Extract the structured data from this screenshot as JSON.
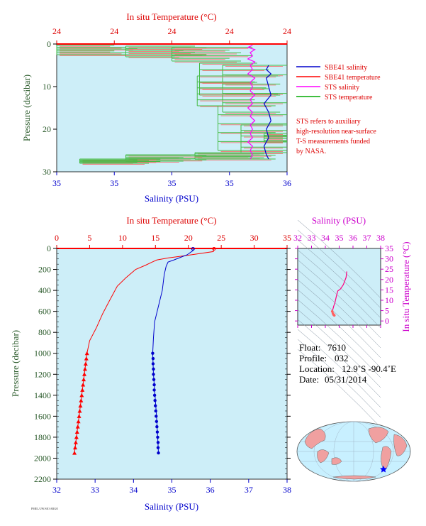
{
  "chart_data": [
    {
      "id": "top",
      "type": "line",
      "xlabel_bottom": "Salinity (PSU)",
      "xlabel_top": "In situ Temperature (°C)",
      "ylabel": "Pressure (decibar)",
      "top_ticks": [
        "24",
        "24",
        "24",
        "24",
        "24"
      ],
      "bottom_ticks": [
        "35",
        "35",
        "35",
        "35",
        "36"
      ],
      "yticks": [
        0,
        10,
        20,
        30
      ],
      "ylim": [
        30,
        0
      ],
      "xlim": [
        0,
        1
      ],
      "legend": [
        {
          "label": "SBE41 salinity",
          "color": "#0000cc"
        },
        {
          "label": "SBE41 temperature",
          "color": "#ff0000"
        },
        {
          "label": "STS salinity",
          "color": "#ff00ff"
        },
        {
          "label": "STS temperature",
          "color": "#00aa00"
        }
      ],
      "note": [
        "STS refers to auxiliary",
        "high-resolution near-surface",
        "T-S measurements funded",
        "by NASA."
      ],
      "series": [
        {
          "name": "SBE41 salinity",
          "color": "#0000cc",
          "points": [
            [
              0.92,
              5.0
            ],
            [
              0.91,
              6
            ],
            [
              0.93,
              7
            ],
            [
              0.91,
              8
            ],
            [
              0.92,
              10
            ],
            [
              0.93,
              12
            ],
            [
              0.9,
              14
            ],
            [
              0.92,
              16
            ],
            [
              0.93,
              18
            ],
            [
              0.91,
              20
            ],
            [
              0.92,
              22
            ],
            [
              0.9,
              24
            ],
            [
              0.91,
              26
            ],
            [
              0.92,
              27
            ]
          ]
        },
        {
          "name": "STS salinity",
          "color": "#ff00ff",
          "points": [
            [
              0.85,
              0.3
            ],
            [
              0.83,
              0.8
            ],
            [
              0.86,
              1.3
            ],
            [
              0.84,
              2
            ],
            [
              0.85,
              2.8
            ],
            [
              0.83,
              3.5
            ],
            [
              0.86,
              4.2
            ],
            [
              0.84,
              5
            ],
            [
              0.85,
              6
            ],
            [
              0.83,
              7
            ],
            [
              0.86,
              8
            ],
            [
              0.84,
              9
            ],
            [
              0.85,
              10
            ],
            [
              0.84,
              11
            ],
            [
              0.86,
              12
            ],
            [
              0.84,
              13
            ],
            [
              0.85,
              14
            ],
            [
              0.83,
              15
            ],
            [
              0.85,
              16
            ],
            [
              0.84,
              17
            ],
            [
              0.86,
              18
            ],
            [
              0.84,
              19
            ],
            [
              0.85,
              20
            ],
            [
              0.84,
              21
            ],
            [
              0.85,
              22
            ],
            [
              0.83,
              23
            ],
            [
              0.85,
              24
            ],
            [
              0.84,
              25
            ],
            [
              0.85,
              26
            ],
            [
              0.84,
              27
            ]
          ]
        }
      ],
      "temperature_steps": [
        {
          "x": 0.0,
          "y0": 0.3,
          "y1": 2.5
        },
        {
          "x": 0.3,
          "y0": 0.5,
          "y1": 3.0
        },
        {
          "x": 0.5,
          "y0": 0.8,
          "y1": 4.0
        },
        {
          "x": 0.62,
          "y0": 4.5,
          "y1": 12.0
        },
        {
          "x": 0.72,
          "y0": 5.0,
          "y1": 16.0
        },
        {
          "x": 0.61,
          "y0": 7.5,
          "y1": 14.5
        },
        {
          "x": 0.7,
          "y0": 14.5,
          "y1": 25.0
        },
        {
          "x": 0.8,
          "y0": 19.0,
          "y1": 25.5
        },
        {
          "x": 0.9,
          "y0": 21.0,
          "y1": 23.0
        },
        {
          "x": 0.6,
          "y0": 25.5,
          "y1": 27.0
        },
        {
          "x": 0.3,
          "y0": 26.0,
          "y1": 27.5
        },
        {
          "x": 0.1,
          "y0": 27.0,
          "y1": 28.0
        }
      ],
      "background": "#cdeef8"
    },
    {
      "id": "main",
      "type": "line",
      "xlabel_bottom": "Salinity (PSU)",
      "xlabel_top": "In situ Temperature (°C)",
      "ylabel": "Pressure (decibar)",
      "xlim_salinity": [
        32,
        38
      ],
      "xlim_temperature": [
        0,
        35
      ],
      "ylim": [
        2200,
        0
      ],
      "salinity_ticks": [
        32,
        33,
        34,
        35,
        36,
        37,
        38
      ],
      "temperature_ticks": [
        0,
        5,
        10,
        15,
        20,
        25,
        30,
        35
      ],
      "pressure_ticks": [
        0,
        200,
        400,
        600,
        800,
        1000,
        1200,
        1400,
        1600,
        1800,
        2000,
        2200
      ],
      "salinity_series": {
        "name": "Salinity",
        "color": "#0000cc",
        "points": [
          [
            35.55,
            3
          ],
          [
            35.55,
            20
          ],
          [
            35.4,
            60
          ],
          [
            35.05,
            110
          ],
          [
            34.9,
            130
          ],
          [
            34.85,
            170
          ],
          [
            34.8,
            250
          ],
          [
            34.75,
            400
          ],
          [
            34.65,
            550
          ],
          [
            34.55,
            700
          ],
          [
            34.52,
            850
          ],
          [
            34.5,
            1000
          ],
          [
            34.52,
            1200
          ],
          [
            34.56,
            1400
          ],
          [
            34.6,
            1600
          ],
          [
            34.63,
            1800
          ],
          [
            34.65,
            1950
          ]
        ],
        "markers": [
          [
            34.5,
            1000
          ],
          [
            34.51,
            1050
          ],
          [
            34.51,
            1100
          ],
          [
            34.52,
            1150
          ],
          [
            34.52,
            1200
          ],
          [
            34.53,
            1250
          ],
          [
            34.54,
            1300
          ],
          [
            34.54,
            1350
          ],
          [
            34.55,
            1400
          ],
          [
            34.56,
            1450
          ],
          [
            34.57,
            1500
          ],
          [
            34.58,
            1550
          ],
          [
            34.59,
            1600
          ],
          [
            34.6,
            1650
          ],
          [
            34.61,
            1700
          ],
          [
            34.62,
            1750
          ],
          [
            34.63,
            1800
          ],
          [
            34.64,
            1850
          ],
          [
            34.64,
            1900
          ],
          [
            34.65,
            1950
          ]
        ]
      },
      "temperature_series": {
        "name": "Temperature",
        "color": "#ff0000",
        "points": [
          [
            23.9,
            3
          ],
          [
            23.8,
            30
          ],
          [
            20.5,
            60
          ],
          [
            17,
            90
          ],
          [
            15.2,
            110
          ],
          [
            14.5,
            130
          ],
          [
            13.5,
            160
          ],
          [
            12,
            200
          ],
          [
            10.5,
            280
          ],
          [
            9.2,
            360
          ],
          [
            8,
            500
          ],
          [
            7,
            620
          ],
          [
            6,
            760
          ],
          [
            5,
            880
          ],
          [
            4.6,
            1000
          ],
          [
            4.2,
            1200
          ],
          [
            3.8,
            1400
          ],
          [
            3.4,
            1600
          ],
          [
            3.0,
            1800
          ],
          [
            2.7,
            1950
          ]
        ],
        "markers": [
          [
            4.6,
            1000
          ],
          [
            4.5,
            1050
          ],
          [
            4.4,
            1100
          ],
          [
            4.3,
            1150
          ],
          [
            4.2,
            1200
          ],
          [
            4.1,
            1250
          ],
          [
            4.0,
            1300
          ],
          [
            3.9,
            1350
          ],
          [
            3.8,
            1400
          ],
          [
            3.7,
            1450
          ],
          [
            3.6,
            1500
          ],
          [
            3.5,
            1550
          ],
          [
            3.4,
            1600
          ],
          [
            3.3,
            1650
          ],
          [
            3.2,
            1700
          ],
          [
            3.1,
            1750
          ],
          [
            3.0,
            1800
          ],
          [
            2.9,
            1850
          ],
          [
            2.8,
            1900
          ],
          [
            2.7,
            1950
          ]
        ]
      },
      "background": "#cdeef8"
    },
    {
      "id": "ts",
      "type": "line",
      "xlabel_top": "Salinity (PSU)",
      "ylabel_right": "In situ Temperature (°C)",
      "xlim": [
        32,
        38
      ],
      "ylim": [
        -2,
        35
      ],
      "salinity_ticks": [
        32,
        33,
        34,
        35,
        36,
        37,
        38
      ],
      "temperature_ticks": [
        0,
        5,
        10,
        15,
        20,
        25,
        30,
        35
      ],
      "series": [
        {
          "name": "T-S",
          "color": "#ff0080",
          "points": [
            [
              35.55,
              23.9
            ],
            [
              35.5,
              21
            ],
            [
              35.3,
              17.5
            ],
            [
              35.1,
              15.5
            ],
            [
              34.9,
              14.5
            ],
            [
              34.8,
              12
            ],
            [
              34.7,
              9
            ],
            [
              34.6,
              7
            ],
            [
              34.52,
              5
            ],
            [
              34.5,
              4.6
            ],
            [
              34.55,
              3.6
            ],
            [
              34.6,
              3.0
            ],
            [
              34.65,
              2.7
            ]
          ]
        }
      ],
      "background": "#cdeef8"
    }
  ],
  "info": {
    "float_label": "Float:",
    "float_value": "7610",
    "profile_label": "Profile:",
    "profile_value": "032",
    "location_label": "Location:",
    "location_value": "12.9˚S  -90.4˚E",
    "date_label": "Date:",
    "date_value": "05/31/2014"
  },
  "footer_text": "PMEL/UW/SIO ARGO",
  "colors": {
    "axis_top": "#dd0000",
    "axis_bottom": "#0000cc",
    "axis_left": "#2a5a2a",
    "ts_axis": "#cc00cc",
    "plot_bg": "#cdeef8"
  }
}
